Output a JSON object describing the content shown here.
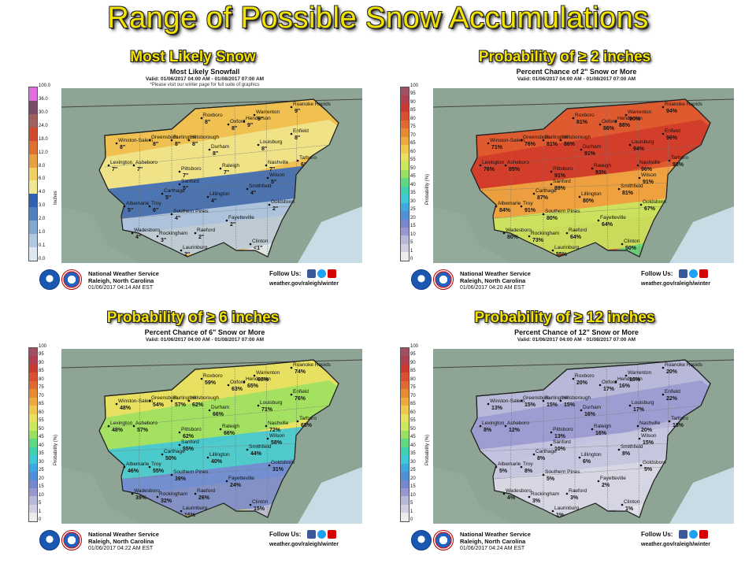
{
  "title": "Range of Possible Snow Accumulations",
  "footer": {
    "office_line1": "National Weather Service",
    "office_line2": "Raleigh, North Carolina",
    "follow": "Follow Us:",
    "site": "weather.gov/raleigh/winter"
  },
  "panels": [
    {
      "heading": "Most Likely Snow",
      "subtitle": "Most Likely Snowfall",
      "valid": "Valid: 01/06/2017 04:00 AM - 01/08/2017 07:00 AM",
      "note": "*Please visit our winter page for full suite of graphics",
      "issued": "01/06/2017 04:14 AM EST",
      "legend_label": "Inches",
      "legend_ticks": [
        "100.0",
        "36.0",
        "30.0",
        "24.0",
        "18.0",
        "12.0",
        "8.0",
        "6.0",
        "4.0",
        "3.0",
        "2.0",
        "1.0",
        "0.1",
        "0.0"
      ],
      "legend_colors": [
        "#e070e0",
        "#7a4a6a",
        "#a06060",
        "#d04a30",
        "#e07030",
        "#e8a040",
        "#f0d060",
        "#f0e890",
        "#3060b0",
        "#5080c0",
        "#80a8d0",
        "#b0c8e0",
        "#dde8f0"
      ],
      "cities": [
        {
          "n": "Roxboro",
          "v": "8\""
        },
        {
          "n": "Oxford",
          "v": "8\""
        },
        {
          "n": "Henderson",
          "v": "9\""
        },
        {
          "n": "Warrenton",
          "v": "9\""
        },
        {
          "n": "Roanoke Rapids",
          "v": "9\""
        },
        {
          "n": "Winston-Salem",
          "v": "8\""
        },
        {
          "n": "Greensboro",
          "v": "8\""
        },
        {
          "n": "Burlington",
          "v": "8\""
        },
        {
          "n": "Hillsborough",
          "v": "8\""
        },
        {
          "n": "Durham",
          "v": "8\""
        },
        {
          "n": "Louisburg",
          "v": "8\""
        },
        {
          "n": "Enfield",
          "v": "8\""
        },
        {
          "n": "Lexington",
          "v": "7\""
        },
        {
          "n": "Asheboro",
          "v": "7\""
        },
        {
          "n": "Pittsboro",
          "v": "7\""
        },
        {
          "n": "Raleigh",
          "v": "7\""
        },
        {
          "n": "Nashville",
          "v": "7\""
        },
        {
          "n": "Tarboro",
          "v": "6\""
        },
        {
          "n": "Wilson",
          "v": "5\""
        },
        {
          "n": "Sanford",
          "v": "5\""
        },
        {
          "n": "Smithfield",
          "v": "4\""
        },
        {
          "n": "Carthage",
          "v": "5\""
        },
        {
          "n": "Lillington",
          "v": "4\""
        },
        {
          "n": "Albemarle",
          "v": "5\""
        },
        {
          "n": "Troy",
          "v": "6\""
        },
        {
          "n": "Goldsboro",
          "v": "2\""
        },
        {
          "n": "Southern Pines",
          "v": "4\""
        },
        {
          "n": "Fayetteville",
          "v": "2\""
        },
        {
          "n": "Wadesboro",
          "v": "4\""
        },
        {
          "n": "Rockingham",
          "v": "3\""
        },
        {
          "n": "Raeford",
          "v": "2\""
        },
        {
          "n": "Clinton",
          "v": "<1\""
        },
        {
          "n": "Laurinburg",
          "v": "2\""
        }
      ]
    },
    {
      "heading": "Probability  of  ≥ 2 inches",
      "subtitle": "Percent Chance of 2\" Snow or More",
      "valid": "Valid: 01/06/2017 04:00 AM - 01/08/2017 07:00 AM",
      "note": "",
      "issued": "01/06/2017 04:20 AM EST",
      "legend_label": "Probability (%)",
      "legend_ticks": [
        "100",
        "95",
        "90",
        "85",
        "80",
        "75",
        "70",
        "65",
        "60",
        "55",
        "50",
        "45",
        "40",
        "35",
        "30",
        "25",
        "20",
        "15",
        "10",
        "5",
        "1",
        "0"
      ],
      "legend_colors": [
        "#a05060",
        "#b04050",
        "#c83a30",
        "#d85030",
        "#e06a30",
        "#e88a30",
        "#f0a840",
        "#f0c850",
        "#e8e060",
        "#c8e860",
        "#98e060",
        "#60d880",
        "#40d0b0",
        "#40c8d8",
        "#40a8e0",
        "#5090d8",
        "#7888d0",
        "#9898d0",
        "#b8b8d8",
        "#d0d0e0",
        "#ececec"
      ],
      "cities": [
        {
          "n": "Roxboro",
          "v": "81%"
        },
        {
          "n": "Oxford",
          "v": "86%"
        },
        {
          "n": "Henderson",
          "v": "88%"
        },
        {
          "n": "Warrenton",
          "v": "90%"
        },
        {
          "n": "Roanoke Rapids",
          "v": "94%"
        },
        {
          "n": "Winston-Salem",
          "v": "71%"
        },
        {
          "n": "Greensboro",
          "v": "76%"
        },
        {
          "n": "Burlington",
          "v": "81%"
        },
        {
          "n": "Hillsborough",
          "v": "86%"
        },
        {
          "n": "Durham",
          "v": "91%"
        },
        {
          "n": "Louisburg",
          "v": "94%"
        },
        {
          "n": "Enfield",
          "v": "96%"
        },
        {
          "n": "Lexington",
          "v": "76%"
        },
        {
          "n": "Asheboro",
          "v": "85%"
        },
        {
          "n": "Pittsboro",
          "v": "91%"
        },
        {
          "n": "Raleigh",
          "v": "93%"
        },
        {
          "n": "Nashville",
          "v": "96%"
        },
        {
          "n": "Tarboro",
          "v": "93%"
        },
        {
          "n": "Wilson",
          "v": "91%"
        },
        {
          "n": "Sanford",
          "v": "89%"
        },
        {
          "n": "Smithfield",
          "v": "81%"
        },
        {
          "n": "Carthage",
          "v": "87%"
        },
        {
          "n": "Lillington",
          "v": "80%"
        },
        {
          "n": "Albemarle",
          "v": "84%"
        },
        {
          "n": "Troy",
          "v": "91%"
        },
        {
          "n": "Goldsboro",
          "v": "67%"
        },
        {
          "n": "Southern Pines",
          "v": "80%"
        },
        {
          "n": "Fayetteville",
          "v": "64%"
        },
        {
          "n": "Wadesboro",
          "v": "80%"
        },
        {
          "n": "Rockingham",
          "v": "73%"
        },
        {
          "n": "Raeford",
          "v": "64%"
        },
        {
          "n": "Clinton",
          "v": "50%"
        },
        {
          "n": "Laurinburg",
          "v": "55%"
        }
      ]
    },
    {
      "heading": "Probability  of  ≥ 6 inches",
      "subtitle": "Percent Chance of 6\" Snow or More",
      "valid": "Valid: 01/06/2017 04:00 AM - 01/08/2017 07:00 AM",
      "note": "",
      "issued": "01/06/2017 04:22 AM EST",
      "legend_label": "Probability (%)",
      "legend_ticks": [
        "100",
        "95",
        "90",
        "85",
        "80",
        "75",
        "70",
        "65",
        "60",
        "55",
        "50",
        "45",
        "40",
        "35",
        "30",
        "25",
        "20",
        "15",
        "10",
        "5",
        "1",
        "0"
      ],
      "legend_colors": [
        "#a05060",
        "#b04050",
        "#c83a30",
        "#d85030",
        "#e06a30",
        "#e88a30",
        "#f0a840",
        "#f0c850",
        "#e8e060",
        "#c8e860",
        "#98e060",
        "#60d880",
        "#40d0b0",
        "#40c8d8",
        "#40a8e0",
        "#5090d8",
        "#7888d0",
        "#9898d0",
        "#b8b8d8",
        "#d0d0e0",
        "#ececec"
      ],
      "cities": [
        {
          "n": "Roxboro",
          "v": "59%"
        },
        {
          "n": "Oxford",
          "v": "63%"
        },
        {
          "n": "Henderson",
          "v": "65%"
        },
        {
          "n": "Warrenton",
          "v": "68%"
        },
        {
          "n": "Roanoke Rapids",
          "v": "74%"
        },
        {
          "n": "Winston-Salem",
          "v": "48%"
        },
        {
          "n": "Greensboro",
          "v": "54%"
        },
        {
          "n": "Burlington",
          "v": "57%"
        },
        {
          "n": "Hillsborough",
          "v": "62%"
        },
        {
          "n": "Durham",
          "v": "66%"
        },
        {
          "n": "Louisburg",
          "v": "71%"
        },
        {
          "n": "Enfield",
          "v": "76%"
        },
        {
          "n": "Lexington",
          "v": "48%"
        },
        {
          "n": "Asheboro",
          "v": "57%"
        },
        {
          "n": "Pittsboro",
          "v": "62%"
        },
        {
          "n": "Raleigh",
          "v": "66%"
        },
        {
          "n": "Nashville",
          "v": "72%"
        },
        {
          "n": "Tarboro",
          "v": "65%"
        },
        {
          "n": "Wilson",
          "v": "58%"
        },
        {
          "n": "Sanford",
          "v": "55%"
        },
        {
          "n": "Smithfield",
          "v": "44%"
        },
        {
          "n": "Carthage",
          "v": "50%"
        },
        {
          "n": "Lillington",
          "v": "40%"
        },
        {
          "n": "Albemarle",
          "v": "46%"
        },
        {
          "n": "Troy",
          "v": "55%"
        },
        {
          "n": "Goldsboro",
          "v": "31%"
        },
        {
          "n": "Southern Pines",
          "v": "39%"
        },
        {
          "n": "Fayetteville",
          "v": "24%"
        },
        {
          "n": "Wadesboro",
          "v": "39%"
        },
        {
          "n": "Rockingham",
          "v": "32%"
        },
        {
          "n": "Raeford",
          "v": "26%"
        },
        {
          "n": "Clinton",
          "v": "15%"
        },
        {
          "n": "Laurinburg",
          "v": "16%"
        }
      ]
    },
    {
      "heading": "Probability  of  ≥ 12 inches",
      "subtitle": "Percent Chance of 12\" Snow or More",
      "valid": "Valid: 01/06/2017 04:00 AM - 01/08/2017 07:00 AM",
      "note": "",
      "issued": "01/06/2017 04:24 AM EST",
      "legend_label": "Probability (%)",
      "legend_ticks": [
        "100",
        "95",
        "90",
        "85",
        "80",
        "75",
        "70",
        "65",
        "60",
        "55",
        "50",
        "45",
        "40",
        "35",
        "30",
        "25",
        "20",
        "15",
        "10",
        "5",
        "1",
        "0"
      ],
      "legend_colors": [
        "#a05060",
        "#b04050",
        "#c83a30",
        "#d85030",
        "#e06a30",
        "#e88a30",
        "#f0a840",
        "#f0c850",
        "#e8e060",
        "#c8e860",
        "#98e060",
        "#60d880",
        "#40d0b0",
        "#40c8d8",
        "#40a8e0",
        "#5090d8",
        "#7888d0",
        "#9898d0",
        "#b8b8d8",
        "#d0d0e0",
        "#ececec"
      ],
      "cities": [
        {
          "n": "Roxboro",
          "v": "20%"
        },
        {
          "n": "Oxford",
          "v": "17%"
        },
        {
          "n": "Henderson",
          "v": "16%"
        },
        {
          "n": "Warrenton",
          "v": "18%"
        },
        {
          "n": "Roanoke Rapids",
          "v": "20%"
        },
        {
          "n": "Winston-Salem",
          "v": "13%"
        },
        {
          "n": "Greensboro",
          "v": "15%"
        },
        {
          "n": "Burlington",
          "v": "15%"
        },
        {
          "n": "Hillsborough",
          "v": "15%"
        },
        {
          "n": "Durham",
          "v": "16%"
        },
        {
          "n": "Louisburg",
          "v": "17%"
        },
        {
          "n": "Enfield",
          "v": "22%"
        },
        {
          "n": "Lexington",
          "v": "8%"
        },
        {
          "n": "Asheboro",
          "v": "12%"
        },
        {
          "n": "Pittsboro",
          "v": "13%"
        },
        {
          "n": "Raleigh",
          "v": "16%"
        },
        {
          "n": "Nashville",
          "v": "20%"
        },
        {
          "n": "Tarboro",
          "v": "18%"
        },
        {
          "n": "Wilson",
          "v": "15%"
        },
        {
          "n": "Sanford",
          "v": "10%"
        },
        {
          "n": "Smithfield",
          "v": "8%"
        },
        {
          "n": "Carthage",
          "v": "8%"
        },
        {
          "n": "Lillington",
          "v": "6%"
        },
        {
          "n": "Albemarle",
          "v": "5%"
        },
        {
          "n": "Troy",
          "v": "8%"
        },
        {
          "n": "Goldsboro",
          "v": "5%"
        },
        {
          "n": "Southern Pines",
          "v": "5%"
        },
        {
          "n": "Fayetteville",
          "v": "2%"
        },
        {
          "n": "Wadesboro",
          "v": "4%"
        },
        {
          "n": "Rockingham",
          "v": "3%"
        },
        {
          "n": "Raeford",
          "v": "3%"
        },
        {
          "n": "Clinton",
          "v": "1%"
        },
        {
          "n": "Laurinburg",
          "v": "1%"
        }
      ]
    }
  ]
}
